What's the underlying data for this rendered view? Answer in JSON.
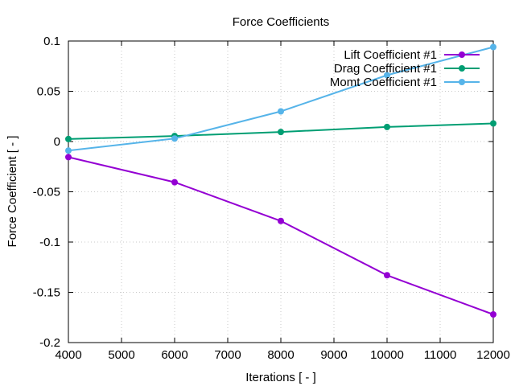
{
  "chart_data": {
    "type": "line",
    "title": "Force Coefficients",
    "xlabel": "Iterations [ - ]",
    "ylabel": "Force Coefficient [ - ]",
    "xlim": [
      4000,
      12000
    ],
    "ylim": [
      -0.2,
      0.1
    ],
    "xticks": [
      4000,
      5000,
      6000,
      7000,
      8000,
      9000,
      10000,
      11000,
      12000
    ],
    "yticks": [
      -0.2,
      -0.15,
      -0.1,
      -0.05,
      0,
      0.05,
      0.1
    ],
    "xtick_labels": [
      "4000",
      "5000",
      "6000",
      "7000",
      "8000",
      "9000",
      "10000",
      "11000",
      "12000"
    ],
    "ytick_labels": [
      "-0.2",
      "-0.15",
      "-0.1",
      "-0.05",
      "0",
      "0.05",
      "0.1"
    ],
    "grid": true,
    "legend_position": "top-right",
    "series": [
      {
        "name": "Lift Coefficient #1",
        "color": "#9400d3",
        "x": [
          4000,
          6000,
          8000,
          10000,
          12000
        ],
        "y": [
          -0.0155,
          -0.0405,
          -0.079,
          -0.133,
          -0.172
        ]
      },
      {
        "name": "Drag Coefficient #1",
        "color": "#009e73",
        "x": [
          4000,
          6000,
          8000,
          10000,
          12000
        ],
        "y": [
          0.0025,
          0.0055,
          0.0095,
          0.0145,
          0.018
        ]
      },
      {
        "name": "Momt Coefficient #1",
        "color": "#56b4e9",
        "x": [
          4000,
          6000,
          8000,
          10000,
          12000
        ],
        "y": [
          -0.009,
          0.003,
          0.03,
          0.066,
          0.094
        ]
      }
    ]
  }
}
